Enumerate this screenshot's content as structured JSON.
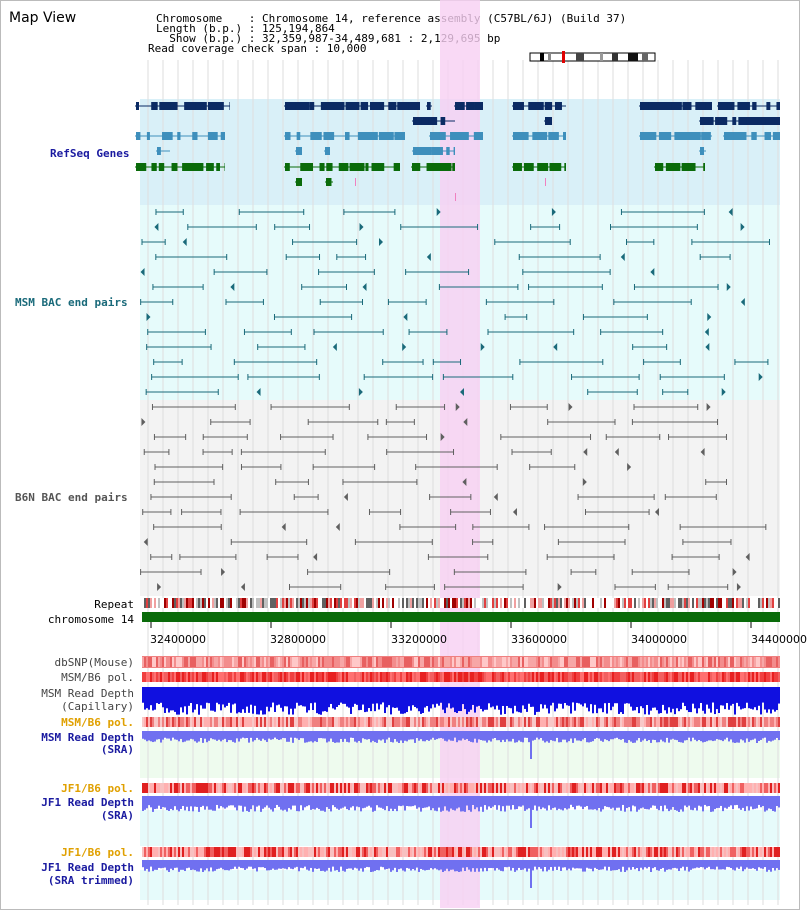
{
  "title": "Map View",
  "info": {
    "line1": "Chromosome    : Chromosome 14, reference assembly (C57BL/6J) (Build 37)",
    "line2": "Length (b.p.) : 125,194,864",
    "line3": "  Show (b.p.) : 32,359,987-34,489,681 : 2,129,695 bp",
    "line4": "Read coverage check span : 10,000"
  },
  "tracks": {
    "refseq": "RefSeq Genes",
    "msm_bac": "MSM BAC end pairs",
    "b6n_bac": "B6N BAC end pairs",
    "repeat": "Repeat",
    "chromosome": "chromosome 14",
    "dbsnp": "dbSNP(Mouse)",
    "msm_b6_pol": "MSM/B6 pol.",
    "msm_depth_cap_1": "MSM Read Depth",
    "msm_depth_cap_2": "(Capillary)",
    "msm_b6_pol2": "MSM/B6 pol.",
    "msm_depth_sra_1": "MSM Read Depth",
    "msm_depth_sra_2": "(SRA)",
    "jf1_b6_pol": "JF1/B6 pol.",
    "jf1_depth_sra_1": "JF1 Read Depth",
    "jf1_depth_sra_2": "(SRA)",
    "jf1_b6_pol2": "JF1/B6 pol.",
    "jf1_depth_trim_1": "JF1 Read Depth",
    "jf1_depth_trim_2": "(SRA trimmed)"
  },
  "axis": {
    "ticks": [
      "32400000",
      "32800000",
      "33200000",
      "33600000",
      "34000000",
      "34400000"
    ]
  },
  "colors": {
    "highlight": "#f7d0f3",
    "refseq_bg": "#d9f0f8",
    "msm_bg": "#e6fbfb",
    "b6n_bg": "#f3f3f3",
    "dark_gene": "#0b2a63",
    "mid_gene": "#3e8fbc",
    "green_gene": "#0a6b0a",
    "chromosome_bar": "#0a6b0a",
    "label_blue": "#1a1aa0",
    "label_teal": "#1a6a7a",
    "label_orange": "#e0a000"
  }
}
